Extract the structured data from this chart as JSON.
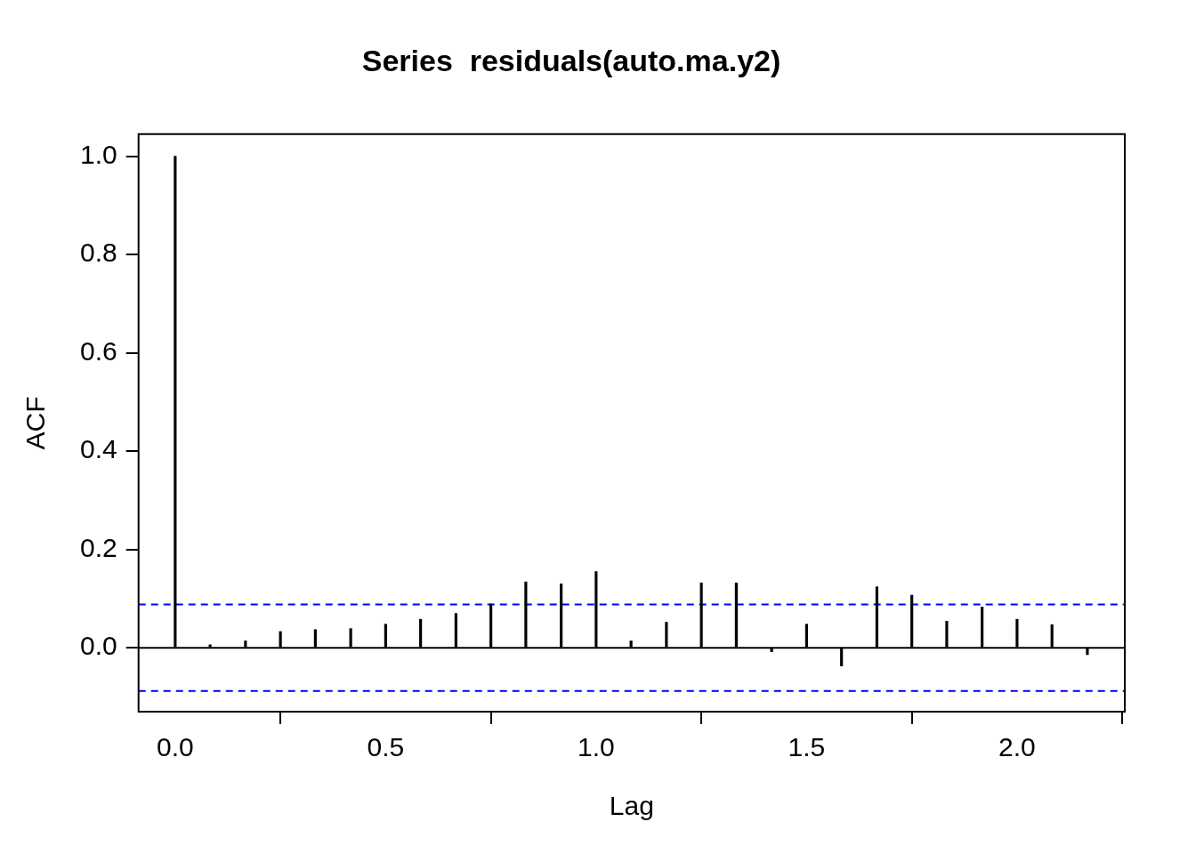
{
  "chart_data": {
    "type": "bar",
    "title": "Series  residuals(auto.ma.y2)",
    "xlabel": "Lag",
    "ylabel": "ACF",
    "x": [
      0,
      0.083,
      0.167,
      0.25,
      0.333,
      0.417,
      0.5,
      0.583,
      0.667,
      0.75,
      0.833,
      0.917,
      1,
      1.083,
      1.167,
      1.25,
      1.333,
      1.417,
      1.5,
      1.583,
      1.667,
      1.75,
      1.833,
      1.917,
      2,
      2.083,
      2.167
    ],
    "values": [
      1,
      0.006,
      0.014,
      0.033,
      0.037,
      0.039,
      0.048,
      0.058,
      0.07,
      0.089,
      0.134,
      0.13,
      0.155,
      0.014,
      0.052,
      0.132,
      0.132,
      -0.008,
      0.048,
      -0.037,
      0.124,
      0.107,
      0.054,
      0.083,
      0.058,
      0.047,
      -0.014
    ],
    "color": "#000000",
    "xlim": [
      -0.087,
      2.256
    ],
    "xticks": [
      {
        "value": 0,
        "label": "0.0"
      },
      {
        "value": 0.5,
        "label": "0.5"
      },
      {
        "value": 1,
        "label": "1.0"
      },
      {
        "value": 1.5,
        "label": "1.5"
      },
      {
        "value": 2,
        "label": "2.0"
      }
    ],
    "ylim": [
      -0.13,
      1.045
    ],
    "yticks": [
      {
        "value": 0,
        "label": "0.0"
      },
      {
        "value": 0.2,
        "label": "0.2"
      },
      {
        "value": 0.4,
        "label": "0.4"
      },
      {
        "value": 0.6,
        "label": "0.6"
      },
      {
        "value": 0.8,
        "label": "0.8"
      },
      {
        "value": 1,
        "label": "1.0"
      }
    ],
    "ref_lines": [
      {
        "axis": "y",
        "value": 0,
        "color": "#000000",
        "line_style": "solid"
      },
      {
        "axis": "y",
        "value": 0.088,
        "color": "#0000ff",
        "line_style": "dashed"
      },
      {
        "axis": "y",
        "value": -0.088,
        "color": "#0000ff",
        "line_style": "dashed"
      }
    ],
    "grid": false,
    "legend": false
  }
}
